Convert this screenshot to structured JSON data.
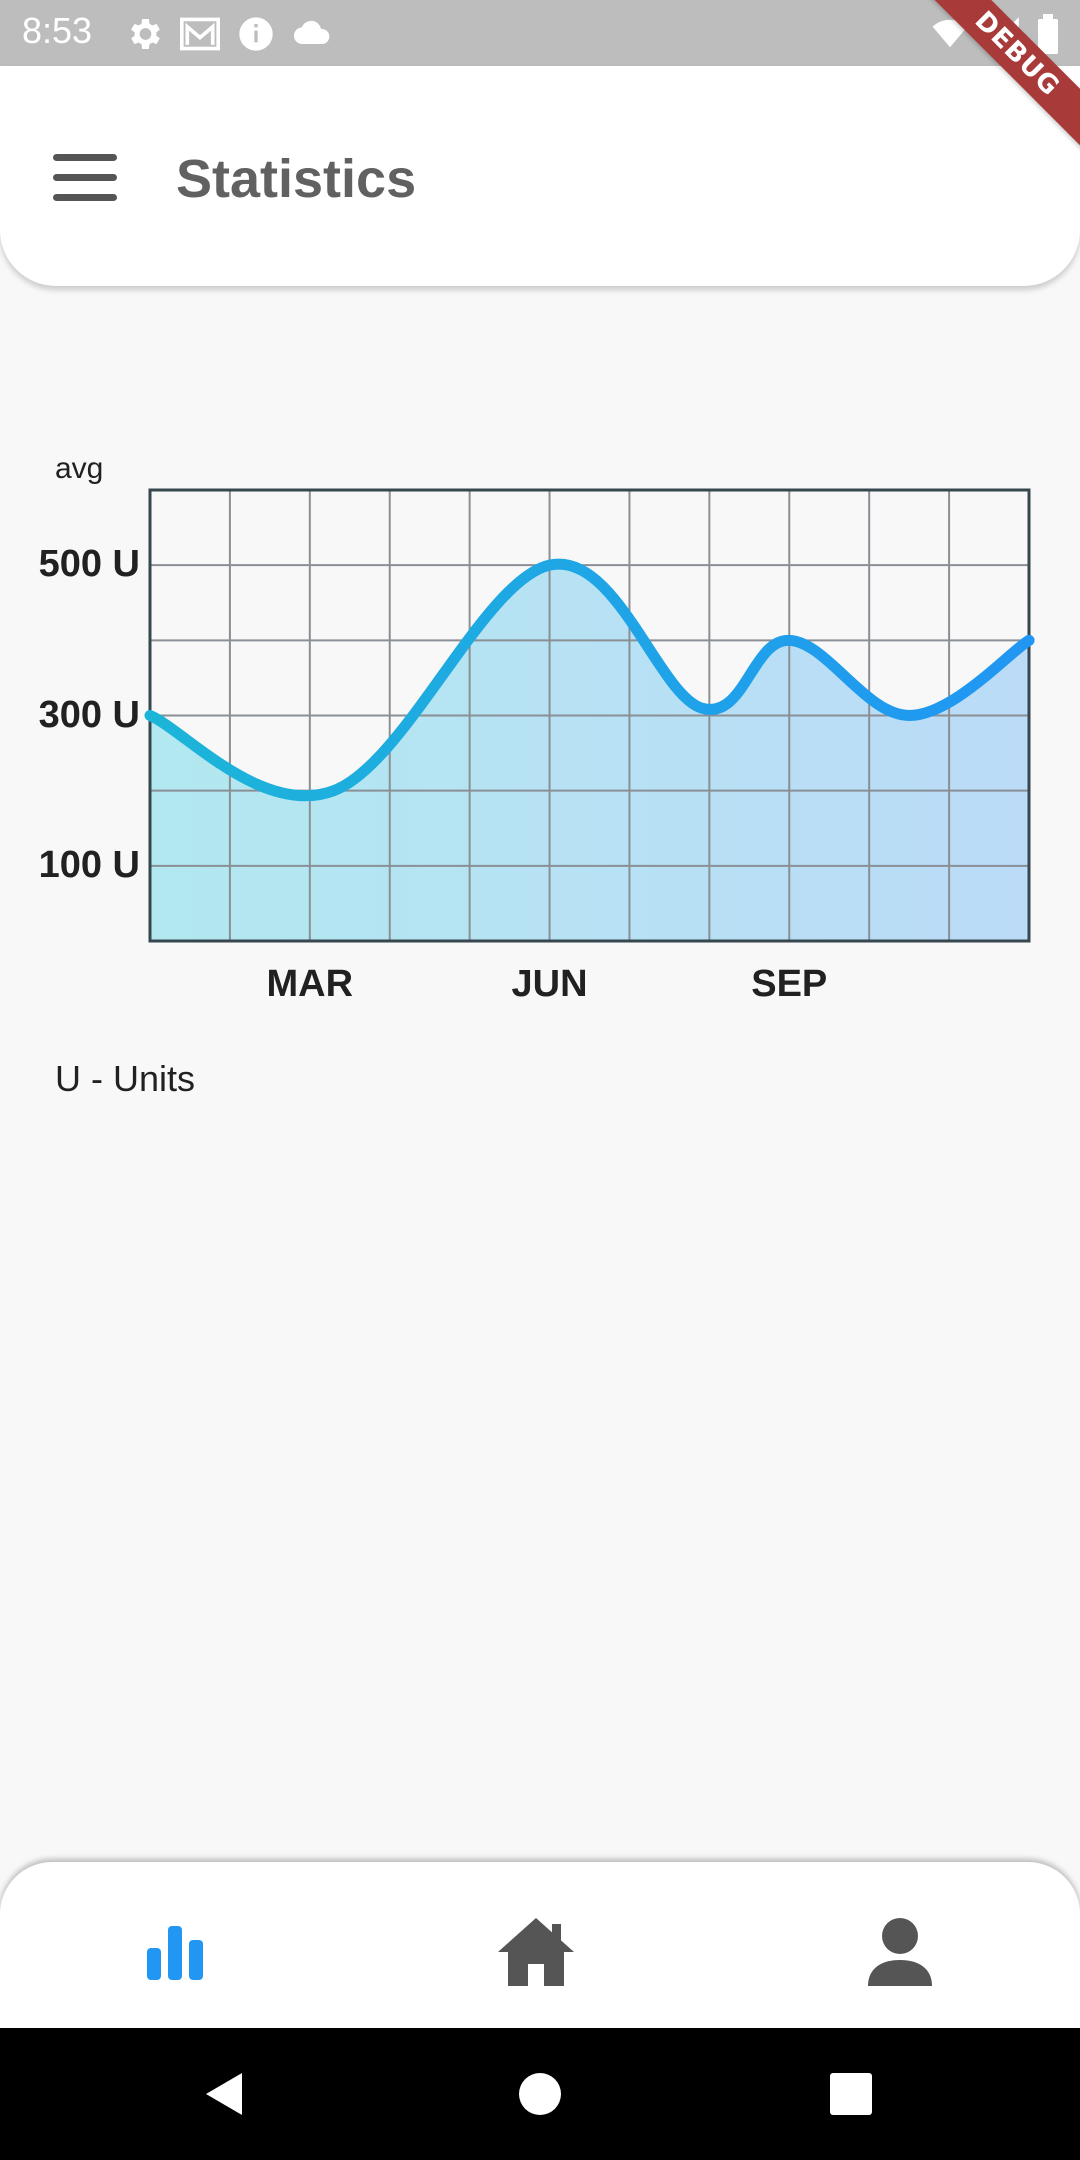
{
  "status_bar": {
    "time": "8:53",
    "left_icons": [
      "gear-icon",
      "mail-icon",
      "info-icon",
      "cloud-icon"
    ],
    "right_icons": [
      "wifi-icon",
      "signal-icon",
      "battery-icon"
    ]
  },
  "debug_banner": "DEBUG",
  "app_bar": {
    "title": "Statistics",
    "menu_icon": "menu-icon"
  },
  "chart_data": {
    "type": "area",
    "y_unit_label": "avg",
    "y_ticks": [
      "500 U",
      "300 U",
      "100 U"
    ],
    "y_tick_values": [
      500,
      300,
      100
    ],
    "x_ticks": [
      "MAR",
      "JUN",
      "SEP"
    ],
    "x_tick_values": [
      2,
      5,
      8
    ],
    "xlim": [
      0,
      11
    ],
    "ylim": [
      0,
      600
    ],
    "grid": true,
    "x": [
      0,
      2.3,
      5,
      6.9,
      8,
      9.5,
      11
    ],
    "values": [
      300,
      200,
      500,
      310,
      400,
      300,
      400
    ],
    "colors": {
      "line_start": "#1cb5d8",
      "line_end": "#2196f3",
      "fill_start": "#b2e8f0",
      "fill_end": "#bbdbf7",
      "grid": "#8a8f96",
      "border": "#37474f"
    }
  },
  "legend_note": "U - Units",
  "bottom_nav": {
    "items": [
      {
        "icon": "bar-chart-icon",
        "active": true,
        "color": "#2196f3"
      },
      {
        "icon": "home-icon",
        "active": false,
        "color": "#555555"
      },
      {
        "icon": "person-icon",
        "active": false,
        "color": "#555555"
      }
    ]
  },
  "system_nav": [
    "back-icon",
    "home-circle-icon",
    "recents-icon"
  ]
}
